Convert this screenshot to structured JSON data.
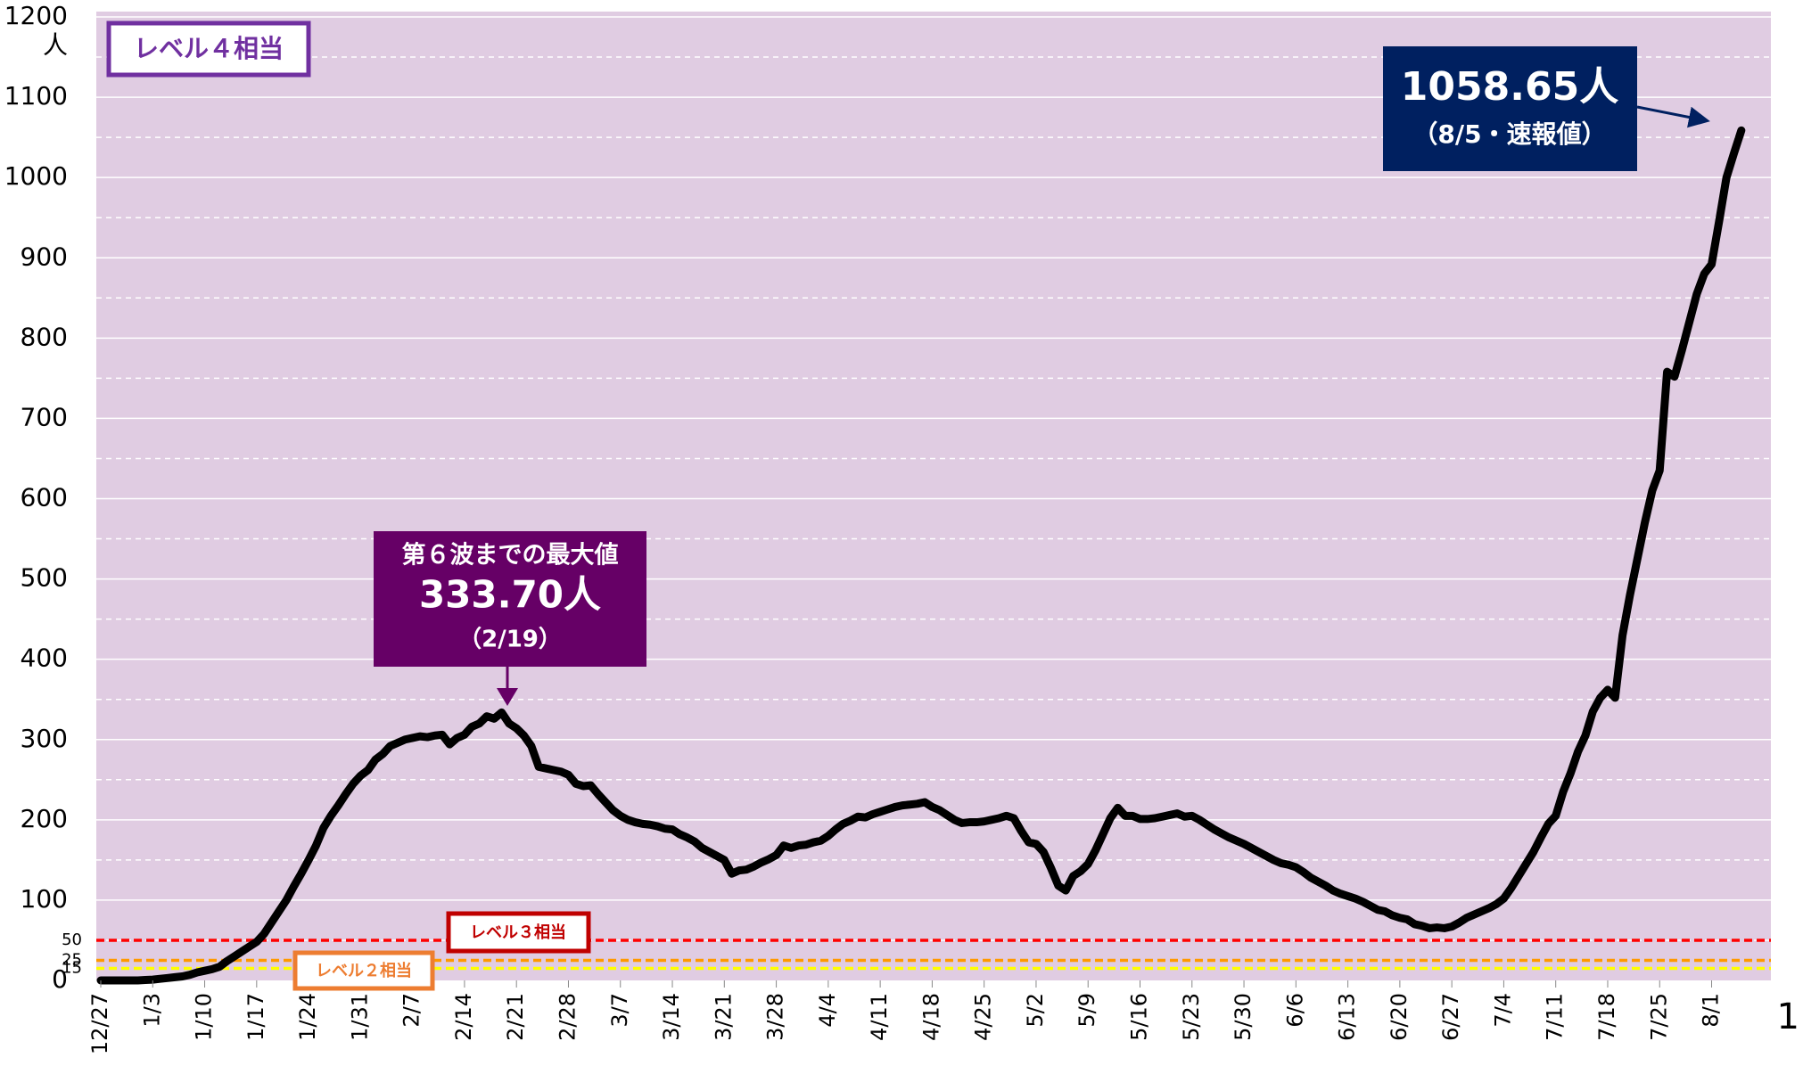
{
  "chart_data": {
    "type": "line",
    "unit": "人",
    "color": "#000000",
    "plot_background": "#e0cce2",
    "grid": true,
    "ylim": [
      0,
      1200
    ],
    "yticks": [
      0,
      100,
      200,
      300,
      400,
      500,
      600,
      700,
      800,
      900,
      1000,
      1100,
      1200
    ],
    "minor_yticks": [
      50,
      150,
      250,
      350,
      450,
      550,
      650,
      750,
      850,
      950,
      1050,
      1150
    ],
    "thresholds": [
      {
        "value": 50,
        "color": "#ff0000",
        "label": "レベル３相当"
      },
      {
        "value": 25,
        "color": "#ff9900",
        "label": "レベル２相当"
      },
      {
        "value": 15,
        "color": "#ffff00"
      }
    ],
    "level4_label": "レベル４相当",
    "annotations": [
      {
        "title": "第６波までの最大値",
        "text": "333.70人",
        "date": "（2/19）"
      },
      {
        "text": "1058.65人",
        "date": "（8/5・速報値）"
      }
    ],
    "page_number": "1",
    "categories": [
      "12/27",
      null,
      null,
      null,
      null,
      null,
      null,
      "1/3",
      null,
      null,
      null,
      null,
      null,
      null,
      "1/10",
      null,
      null,
      null,
      null,
      null,
      null,
      "1/17",
      null,
      null,
      null,
      null,
      null,
      null,
      "1/24",
      null,
      null,
      null,
      null,
      null,
      null,
      "1/31",
      null,
      null,
      null,
      null,
      null,
      null,
      "2/7",
      null,
      null,
      null,
      null,
      null,
      null,
      "2/14",
      null,
      null,
      null,
      null,
      null,
      null,
      "2/21",
      null,
      null,
      null,
      null,
      null,
      null,
      "2/28",
      null,
      null,
      null,
      null,
      null,
      null,
      "3/7",
      null,
      null,
      null,
      null,
      null,
      null,
      "3/14",
      null,
      null,
      null,
      null,
      null,
      null,
      "3/21",
      null,
      null,
      null,
      null,
      null,
      null,
      "3/28",
      null,
      null,
      null,
      null,
      null,
      null,
      "4/4",
      null,
      null,
      null,
      null,
      null,
      null,
      "4/11",
      null,
      null,
      null,
      null,
      null,
      null,
      "4/18",
      null,
      null,
      null,
      null,
      null,
      null,
      "4/25",
      null,
      null,
      null,
      null,
      null,
      null,
      "5/2",
      null,
      null,
      null,
      null,
      null,
      null,
      "5/9",
      null,
      null,
      null,
      null,
      null,
      null,
      "5/16",
      null,
      null,
      null,
      null,
      null,
      null,
      "5/23",
      null,
      null,
      null,
      null,
      null,
      null,
      "5/30",
      null,
      null,
      null,
      null,
      null,
      null,
      "6/6",
      null,
      null,
      null,
      null,
      null,
      null,
      "6/13",
      null,
      null,
      null,
      null,
      null,
      null,
      "6/20",
      null,
      null,
      null,
      null,
      null,
      null,
      "6/27",
      null,
      null,
      null,
      null,
      null,
      null,
      "7/4",
      null,
      null,
      null,
      null,
      null,
      null,
      "7/11",
      null,
      null,
      null,
      null,
      null,
      null,
      "7/18",
      null,
      null,
      null,
      null,
      null,
      null,
      "7/25",
      null,
      null,
      null,
      null,
      null,
      null,
      "8/1",
      null,
      null,
      null,
      null
    ],
    "values": [
      0,
      0,
      0,
      0,
      0,
      0,
      0.5,
      1,
      2,
      3,
      4,
      5,
      7,
      10,
      12,
      14,
      17,
      24,
      30,
      36,
      42,
      48,
      58,
      72,
      86,
      100,
      117,
      133,
      150,
      168,
      190,
      205,
      218,
      232,
      245,
      255,
      262,
      275,
      282,
      292,
      296,
      300,
      302,
      304,
      303,
      305,
      306,
      294,
      302,
      306,
      316,
      320,
      329,
      326,
      333.7,
      320,
      314,
      305,
      292,
      266,
      264,
      262,
      260,
      256,
      245,
      242,
      243,
      232,
      222,
      212,
      205,
      200,
      197,
      195,
      194,
      192,
      189,
      188,
      182,
      178,
      173,
      165,
      160,
      155,
      150,
      133,
      137,
      138,
      142,
      147,
      151,
      156,
      168,
      165,
      168,
      169,
      172,
      174,
      180,
      188,
      195,
      199,
      204,
      203,
      207,
      210,
      213,
      216,
      218,
      219,
      220,
      222,
      216,
      212,
      206,
      200,
      196,
      197,
      197,
      198,
      200,
      202,
      205,
      202,
      186,
      172,
      170,
      160,
      140,
      118,
      112,
      130,
      136,
      145,
      162,
      182,
      202,
      215,
      205,
      205,
      201,
      201,
      202,
      204,
      206,
      208,
      204,
      205,
      200,
      194,
      188,
      183,
      178,
      174,
      170,
      165,
      160,
      155,
      150,
      146,
      144,
      141,
      135,
      128,
      123,
      118,
      112,
      108,
      105,
      102,
      98,
      93,
      88,
      86,
      81,
      78,
      76,
      70,
      68,
      65,
      66,
      65,
      67,
      72,
      78,
      82,
      86,
      90,
      95,
      102,
      115,
      130,
      145,
      160,
      178,
      195,
      205,
      235,
      258,
      285,
      305,
      335,
      352,
      362,
      352,
      430,
      480,
      525,
      570,
      610,
      635,
      758,
      752,
      785,
      820,
      855,
      880,
      892,
      945,
      1000,
      1030,
      1058.65
    ]
  }
}
